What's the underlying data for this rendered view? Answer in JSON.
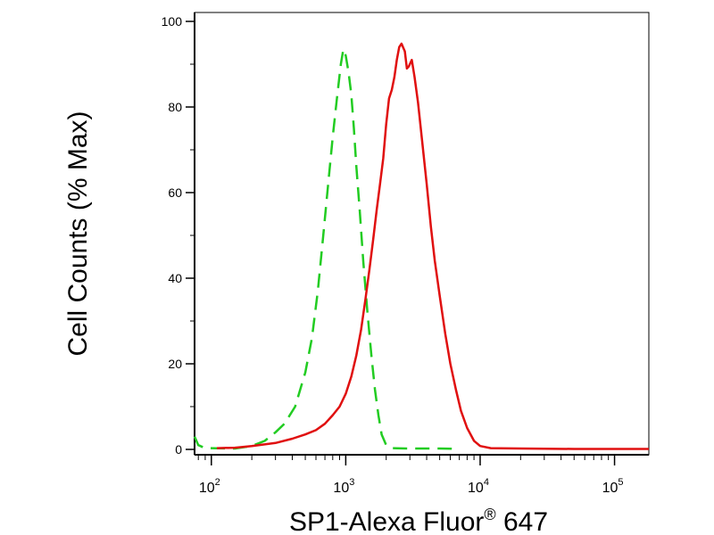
{
  "chart_data": {
    "type": "line",
    "title": "",
    "xlabel_main": "SP1-Alexa Fluor",
    "xlabel_sup": "®",
    "xlabel_tail": " 647",
    "ylabel": "Cell Counts (% Max)",
    "x_scale": "log",
    "xlim": [
      75,
      180000
    ],
    "ylim": [
      0,
      100
    ],
    "y_ticks": [
      "0",
      "20",
      "40",
      "60",
      "80",
      "100"
    ],
    "x_ticks": [
      {
        "value": 100,
        "base": "10",
        "exp": "2"
      },
      {
        "value": 1000,
        "base": "10",
        "exp": "3"
      },
      {
        "value": 10000,
        "base": "10",
        "exp": "4"
      },
      {
        "value": 100000,
        "base": "10",
        "exp": "5"
      }
    ],
    "grid": false,
    "legend": "none",
    "series": [
      {
        "color": "#22cc22",
        "style": "dashed",
        "points": [
          [
            75,
            3
          ],
          [
            80,
            1
          ],
          [
            90,
            0.3
          ],
          [
            150,
            0.2
          ],
          [
            200,
            0.8
          ],
          [
            250,
            2
          ],
          [
            300,
            4
          ],
          [
            350,
            6
          ],
          [
            420,
            10
          ],
          [
            500,
            18
          ],
          [
            560,
            26
          ],
          [
            620,
            37
          ],
          [
            680,
            50
          ],
          [
            740,
            62
          ],
          [
            800,
            73
          ],
          [
            860,
            82
          ],
          [
            920,
            90
          ],
          [
            960,
            93.5
          ],
          [
            1000,
            92
          ],
          [
            1050,
            88
          ],
          [
            1100,
            83
          ],
          [
            1150,
            75
          ],
          [
            1200,
            66
          ],
          [
            1270,
            56
          ],
          [
            1350,
            44
          ],
          [
            1450,
            32
          ],
          [
            1550,
            22
          ],
          [
            1650,
            14
          ],
          [
            1750,
            8
          ],
          [
            1850,
            3.5
          ],
          [
            2000,
            1
          ],
          [
            2200,
            0.3
          ],
          [
            3000,
            0.2
          ],
          [
            5000,
            0.2
          ],
          [
            7000,
            0.1
          ]
        ]
      },
      {
        "color": "#e01010",
        "style": "solid",
        "points": [
          [
            110,
            0.3
          ],
          [
            150,
            0.4
          ],
          [
            200,
            0.8
          ],
          [
            300,
            1.5
          ],
          [
            400,
            2.5
          ],
          [
            500,
            3.5
          ],
          [
            600,
            4.5
          ],
          [
            700,
            6
          ],
          [
            800,
            8
          ],
          [
            900,
            10
          ],
          [
            1000,
            13
          ],
          [
            1100,
            17
          ],
          [
            1200,
            22
          ],
          [
            1300,
            28
          ],
          [
            1400,
            35
          ],
          [
            1500,
            42
          ],
          [
            1600,
            49
          ],
          [
            1700,
            56
          ],
          [
            1800,
            62
          ],
          [
            1900,
            68
          ],
          [
            2000,
            76
          ],
          [
            2100,
            82
          ],
          [
            2200,
            84
          ],
          [
            2300,
            87
          ],
          [
            2400,
            91
          ],
          [
            2500,
            94
          ],
          [
            2600,
            94.8
          ],
          [
            2750,
            93
          ],
          [
            2850,
            89
          ],
          [
            2950,
            89.5
          ],
          [
            3100,
            91
          ],
          [
            3250,
            87
          ],
          [
            3450,
            81
          ],
          [
            3700,
            72
          ],
          [
            4000,
            62
          ],
          [
            4300,
            52
          ],
          [
            4600,
            44
          ],
          [
            5000,
            36
          ],
          [
            5500,
            27
          ],
          [
            6000,
            20
          ],
          [
            6600,
            14
          ],
          [
            7200,
            9
          ],
          [
            8000,
            5
          ],
          [
            9000,
            2
          ],
          [
            10000,
            0.8
          ],
          [
            12000,
            0.3
          ],
          [
            20000,
            0.2
          ],
          [
            50000,
            0.1
          ],
          [
            180000,
            0.1
          ]
        ]
      }
    ]
  }
}
